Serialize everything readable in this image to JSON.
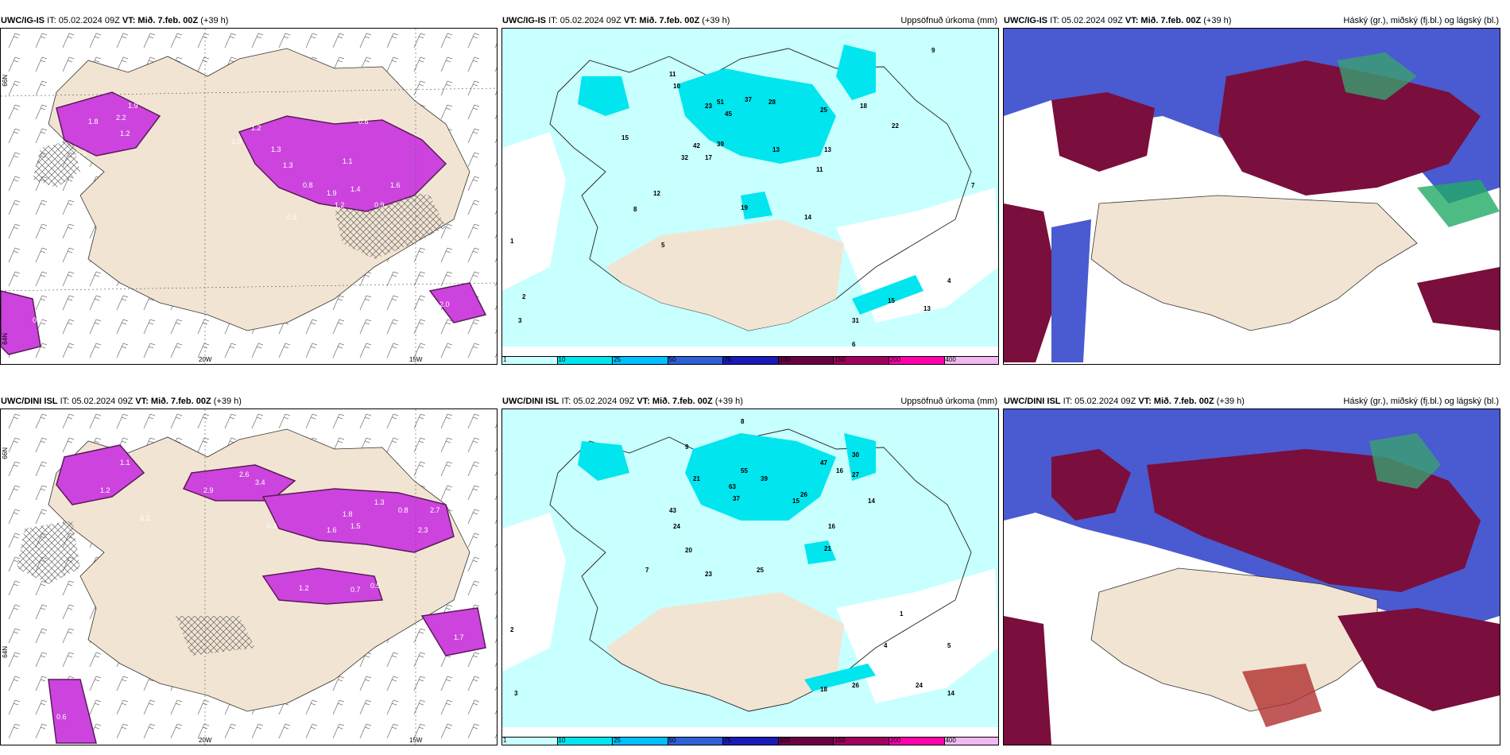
{
  "panels": {
    "top_left": {
      "model": "UWC/IG-IS",
      "it": "IT: 05.02.2024 09Z",
      "vt_label": "VT:",
      "vt": "Mið. 7.feb. 00Z",
      "lead": "(+39 h)",
      "right_title": ""
    },
    "top_mid": {
      "model": "UWC/IG-IS",
      "it": "IT: 05.02.2024 09Z",
      "vt_label": "VT:",
      "vt": "Mið. 7.feb. 00Z",
      "lead": "(+39 h)",
      "right_title": "Uppsöfnuð úrkoma (mm)"
    },
    "top_right": {
      "model": "UWC/IG-IS",
      "it": "IT: 05.02.2024 09Z",
      "vt_label": "VT:",
      "vt": "Mið. 7.feb. 00Z",
      "lead": "(+39 h)",
      "right_title": "Háský (gr.), miðský (fj.bl.) og lágský (bl.)"
    },
    "bot_left": {
      "model": "UWC/DINI ISL",
      "it": "IT: 05.02.2024 09Z",
      "vt_label": "VT:",
      "vt": "Mið. 7.feb. 00Z",
      "lead": "(+39 h)",
      "right_title": ""
    },
    "bot_mid": {
      "model": "UWC/DINI ISL",
      "it": "IT: 05.02.2024 09Z",
      "vt_label": "VT:",
      "vt": "Mið. 7.feb. 00Z",
      "lead": "(+39 h)",
      "right_title": "Uppsöfnuð úrkoma (mm)"
    },
    "bot_right": {
      "model": "UWC/DINI ISL",
      "it": "IT: 05.02.2024 09Z",
      "vt_label": "VT:",
      "vt": "Mið. 7.feb. 00Z",
      "lead": "(+39 h)",
      "right_title": "Háský (gr.), miðský (fj.bl.) og lágský (bl.)"
    }
  },
  "axis_labels": {
    "lon_20w": "20W",
    "lon_15w": "15W",
    "lat_66n": "66N",
    "lat_64n": "64N"
  },
  "colorbar": {
    "ticks": [
      "1",
      "10",
      "25",
      "50",
      "75",
      "100",
      "150",
      "200",
      "400"
    ],
    "colors": [
      "#c8ffff",
      "#00e5ee",
      "#00bfff",
      "#2e5fd8",
      "#1a1ab8",
      "#6b0044",
      "#a00060",
      "#ff00aa",
      "#f0b8f0"
    ]
  },
  "colors": {
    "land": "#f2e4d2",
    "snow_bg": "#c8ffff",
    "snow_heavy": "#00e5ee",
    "precip_purple": "#cc44dd",
    "cloud_high": "#7a0e3c",
    "cloud_mid": "#4a5ad0",
    "cloud_low": "#22aa66"
  },
  "snow_labels_top": [
    "1.8",
    "2.2",
    "1.9",
    "1.2",
    "0.5",
    "1.2",
    "1.3",
    "1.6",
    "0.8",
    "1.9",
    "1.4",
    "0.9",
    "0.5",
    "1.0",
    "0.6",
    "2.0",
    "1.1",
    "1.3",
    "1.2",
    "0.3"
  ],
  "snow_labels_bot": [
    "1.1",
    "1.2",
    "2.9",
    "2.6",
    "3.4",
    "1.6",
    "1.8",
    "1.5",
    "2.3",
    "1.2",
    "0.7",
    "0.5",
    "0.4",
    "3.2",
    "1.7",
    "0.6",
    "2.7",
    "1.3",
    "0.8"
  ],
  "precip_labels_top": [
    "11",
    "10",
    "28",
    "51",
    "37",
    "45",
    "25",
    "18",
    "13",
    "42",
    "39",
    "17",
    "19",
    "15",
    "32",
    "22",
    "13",
    "14",
    "23",
    "11",
    "12",
    "15",
    "9",
    "8",
    "7",
    "5",
    "31",
    "13",
    "6",
    "1",
    "2",
    "3",
    "4"
  ],
  "precip_labels_bot": [
    "8",
    "9",
    "21",
    "55",
    "47",
    "39",
    "63",
    "37",
    "30",
    "27",
    "43",
    "26",
    "24",
    "20",
    "23",
    "25",
    "21",
    "16",
    "14",
    "15",
    "18",
    "26",
    "24",
    "16",
    "14",
    "1",
    "2",
    "3",
    "4",
    "5",
    "7"
  ]
}
